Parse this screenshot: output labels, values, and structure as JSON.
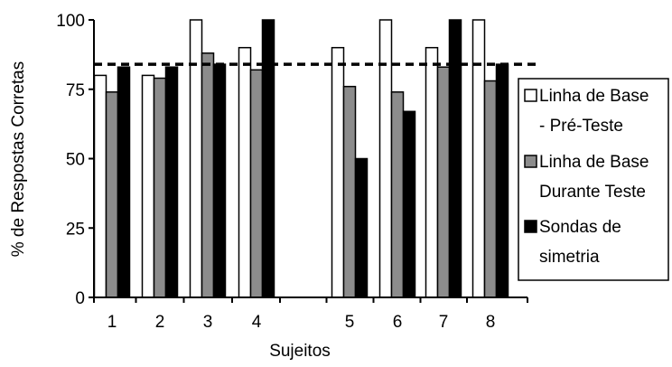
{
  "chart_data": {
    "type": "bar",
    "xlabel": "Sujeitos",
    "ylabel": "% de Respostas Corretas",
    "ylim": [
      0,
      100
    ],
    "yticks": [
      "0",
      "25",
      "50",
      "75",
      "100"
    ],
    "categories": [
      "1",
      "2",
      "3",
      "4",
      "",
      "5",
      "6",
      "7",
      "8"
    ],
    "series": [
      {
        "name_lines": [
          "Linha de Base",
          "- Pré-Teste"
        ],
        "color": "#ffffff",
        "values": [
          80,
          80,
          100,
          90,
          null,
          90,
          100,
          90,
          100
        ]
      },
      {
        "name_lines": [
          "Linha de Base",
          "Durante Teste"
        ],
        "color": "#8c8c8c",
        "values": [
          74,
          79,
          88,
          82,
          null,
          76,
          74,
          83,
          78
        ]
      },
      {
        "name_lines": [
          "Sondas de",
          "simetria"
        ],
        "color": "#000000",
        "values": [
          83,
          83,
          84,
          100,
          null,
          50,
          67,
          100,
          84
        ]
      }
    ],
    "reference_line": {
      "value": 84,
      "style": "dashed"
    },
    "grid": false,
    "legend_position": "right"
  }
}
